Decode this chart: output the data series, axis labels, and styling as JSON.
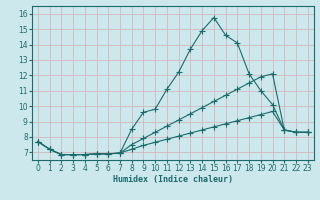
{
  "xlabel": "Humidex (Indice chaleur)",
  "bg_color": "#cde8ec",
  "grid_color": "#b8d4d8",
  "line_color": "#1a6b6b",
  "xlim": [
    -0.5,
    23.5
  ],
  "ylim": [
    6.5,
    16.5
  ],
  "xticks": [
    0,
    1,
    2,
    3,
    4,
    5,
    6,
    7,
    8,
    9,
    10,
    11,
    12,
    13,
    14,
    15,
    16,
    17,
    18,
    19,
    20,
    21,
    22,
    23
  ],
  "yticks": [
    7,
    8,
    9,
    10,
    11,
    12,
    13,
    14,
    15,
    16
  ],
  "line1_x": [
    0,
    1,
    2,
    3,
    4,
    5,
    6,
    7,
    8,
    9,
    10,
    11,
    12,
    13,
    14,
    15,
    16,
    17,
    18,
    19,
    20,
    21,
    22,
    23
  ],
  "line1_y": [
    7.7,
    7.2,
    6.85,
    6.85,
    6.85,
    6.9,
    6.9,
    6.95,
    8.5,
    9.6,
    9.8,
    11.1,
    12.2,
    13.7,
    14.9,
    15.75,
    14.6,
    14.1,
    12.1,
    11.0,
    10.1,
    8.45,
    8.3,
    8.3
  ],
  "line2_x": [
    0,
    1,
    2,
    3,
    4,
    5,
    6,
    7,
    8,
    9,
    10,
    11,
    12,
    13,
    14,
    15,
    16,
    17,
    18,
    19,
    20,
    21,
    22,
    23
  ],
  "line2_y": [
    7.7,
    7.2,
    6.85,
    6.85,
    6.85,
    6.9,
    6.9,
    6.95,
    7.5,
    7.9,
    8.3,
    8.7,
    9.1,
    9.5,
    9.9,
    10.3,
    10.7,
    11.1,
    11.5,
    11.9,
    12.1,
    8.45,
    8.3,
    8.3
  ],
  "line3_x": [
    0,
    1,
    2,
    3,
    4,
    5,
    6,
    7,
    8,
    9,
    10,
    11,
    12,
    13,
    14,
    15,
    16,
    17,
    18,
    19,
    20,
    21,
    22,
    23
  ],
  "line3_y": [
    7.7,
    7.2,
    6.85,
    6.85,
    6.85,
    6.9,
    6.9,
    6.95,
    7.2,
    7.45,
    7.65,
    7.85,
    8.05,
    8.25,
    8.45,
    8.65,
    8.85,
    9.05,
    9.25,
    9.45,
    9.65,
    8.45,
    8.3,
    8.3
  ]
}
